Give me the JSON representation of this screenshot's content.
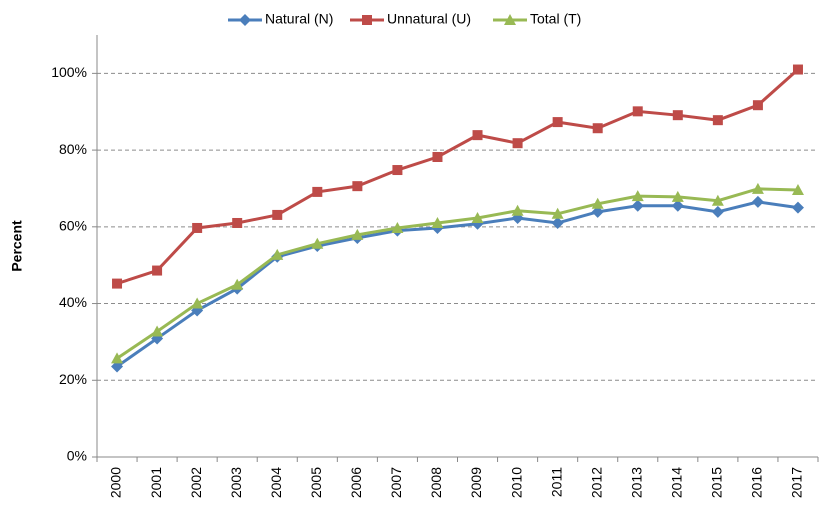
{
  "chart_data": {
    "type": "line",
    "y_label": "Percent",
    "categories": [
      "2000",
      "2001",
      "2002",
      "2003",
      "2004",
      "2005",
      "2006",
      "2007",
      "2008",
      "2009",
      "2010",
      "2011",
      "2012",
      "2013",
      "2014",
      "2015",
      "2016",
      "2017"
    ],
    "series": [
      {
        "name": "Natural (N)",
        "color": "#4a7ebb",
        "marker": "diamond",
        "values": [
          23.6,
          30.9,
          38.2,
          43.9,
          52.2,
          55.0,
          57.1,
          59.0,
          59.7,
          60.8,
          62.3,
          61.0,
          63.9,
          65.5,
          65.5,
          63.9,
          66.5,
          65.0
        ]
      },
      {
        "name": "Unnatural (U)",
        "color": "#be4b48",
        "marker": "square",
        "values": [
          45.2,
          48.6,
          59.7,
          61.0,
          63.1,
          69.1,
          70.6,
          74.8,
          78.2,
          83.9,
          81.8,
          87.3,
          85.7,
          90.1,
          89.1,
          87.8,
          91.7,
          101.0
        ]
      },
      {
        "name": "Total (T)",
        "color": "#98b954",
        "marker": "triangle",
        "values": [
          25.7,
          32.7,
          40.0,
          44.9,
          52.7,
          55.6,
          57.9,
          59.7,
          61.0,
          62.3,
          64.2,
          63.4,
          66.0,
          68.0,
          67.8,
          66.8,
          69.9,
          69.6
        ]
      }
    ],
    "ylim": [
      0,
      110
    ],
    "yticks": [
      {
        "value": 0,
        "label": "0%"
      },
      {
        "value": 20,
        "label": "20%"
      },
      {
        "value": 40,
        "label": "40%"
      },
      {
        "value": 60,
        "label": "60%"
      },
      {
        "value": 80,
        "label": "80%"
      },
      {
        "value": 100,
        "label": "100%"
      }
    ],
    "grid": true,
    "legend": "top"
  }
}
